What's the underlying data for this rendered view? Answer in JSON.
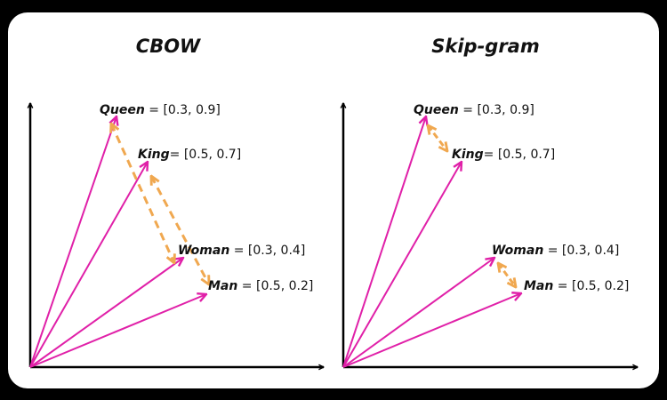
{
  "colors": {
    "background": "#000000",
    "card": "#ffffff",
    "axis": "#000000",
    "vector": "#e020a8",
    "relation": "#f0a850"
  },
  "panels": [
    {
      "title": "CBOW",
      "words": [
        {
          "name": "Queen",
          "eq": " = [0.3, 0.9]"
        },
        {
          "name": "King",
          "eq": "= [0.5, 0.7]"
        },
        {
          "name": "Woman",
          "eq": " = [0.3, 0.4]"
        },
        {
          "name": "Man",
          "eq": " = [0.5, 0.2]"
        }
      ],
      "relations": [
        [
          "Queen",
          "Woman"
        ],
        [
          "King",
          "Man"
        ]
      ]
    },
    {
      "title": "Skip-gram",
      "words": [
        {
          "name": "Queen",
          "eq": " = [0.3, 0.9]"
        },
        {
          "name": "King",
          "eq": "= [0.5, 0.7]"
        },
        {
          "name": "Woman",
          "eq": " = [0.3, 0.4]"
        },
        {
          "name": "Man",
          "eq": " = [0.5, 0.2]"
        }
      ],
      "relations": [
        [
          "Queen",
          "King"
        ],
        [
          "Woman",
          "Man"
        ]
      ]
    }
  ]
}
